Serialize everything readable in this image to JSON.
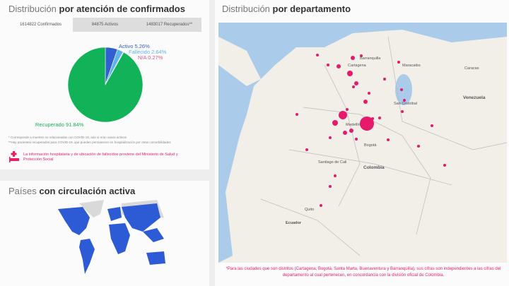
{
  "confirmados": {
    "title_light": "Distribución",
    "title_bold": "por atención de confirmados",
    "tabs": [
      {
        "label": "1614822 Confirmados",
        "active": true
      },
      {
        "label": "84875 Activos"
      },
      {
        "label": "1483017 Recuperados**"
      }
    ],
    "notes": [
      "* Corresponde a muertes no relacionadas con COVID-19, aún si eran casos activos",
      "**Hay pacientes recuperados para COVID-19, que pueden permanecer en hospitalización por otras comorbilidades"
    ],
    "hospital_note": "La información hospitalaria y de ubicación de fallecidos proviene del Ministerio de Salud y Protección Social",
    "hospital_icon": "hospital-bed-icon"
  },
  "chart_data": {
    "type": "pie",
    "slices": [
      {
        "label": "Activo 5.26%",
        "name": "Activo",
        "value": 5.26,
        "color": "#2f5fd0"
      },
      {
        "label": "Fallecido 2.64%",
        "name": "Fallecido",
        "value": 2.64,
        "color": "#5fb3ea"
      },
      {
        "label": "N/A 0.27%",
        "name": "N/A",
        "value": 0.27,
        "color": "#e0578f"
      },
      {
        "label": "Recuperado 91.84%",
        "name": "Recuperado",
        "value": 91.84,
        "color": "#12b358"
      }
    ]
  },
  "paises": {
    "title_light": "Países",
    "title_bold": "con circulación activa",
    "active_color": "#2d5bd6",
    "inactive_color": "#d9d9d9"
  },
  "departamento": {
    "title_light": "Distribución",
    "title_bold": "por departamento",
    "map_labels": [
      "Venezuela",
      "Colombia",
      "Ecuador",
      "Medellín",
      "Bogotá",
      "Santiago de Cali",
      "Cartagena",
      "Barranquilla",
      "Maracaibo",
      "San Cristóbal",
      "Caracas",
      "Quito"
    ],
    "marker_color": "#e6196b",
    "footnote": "*Para las ciudades que son distritos (Cartagena, Bogotá, Santa Marta, Buenaventura y Barranquilla), sus cifras son independientes a las cifras del departamento al cual pertenecen, en concordancia con la división oficial de Colombia."
  }
}
